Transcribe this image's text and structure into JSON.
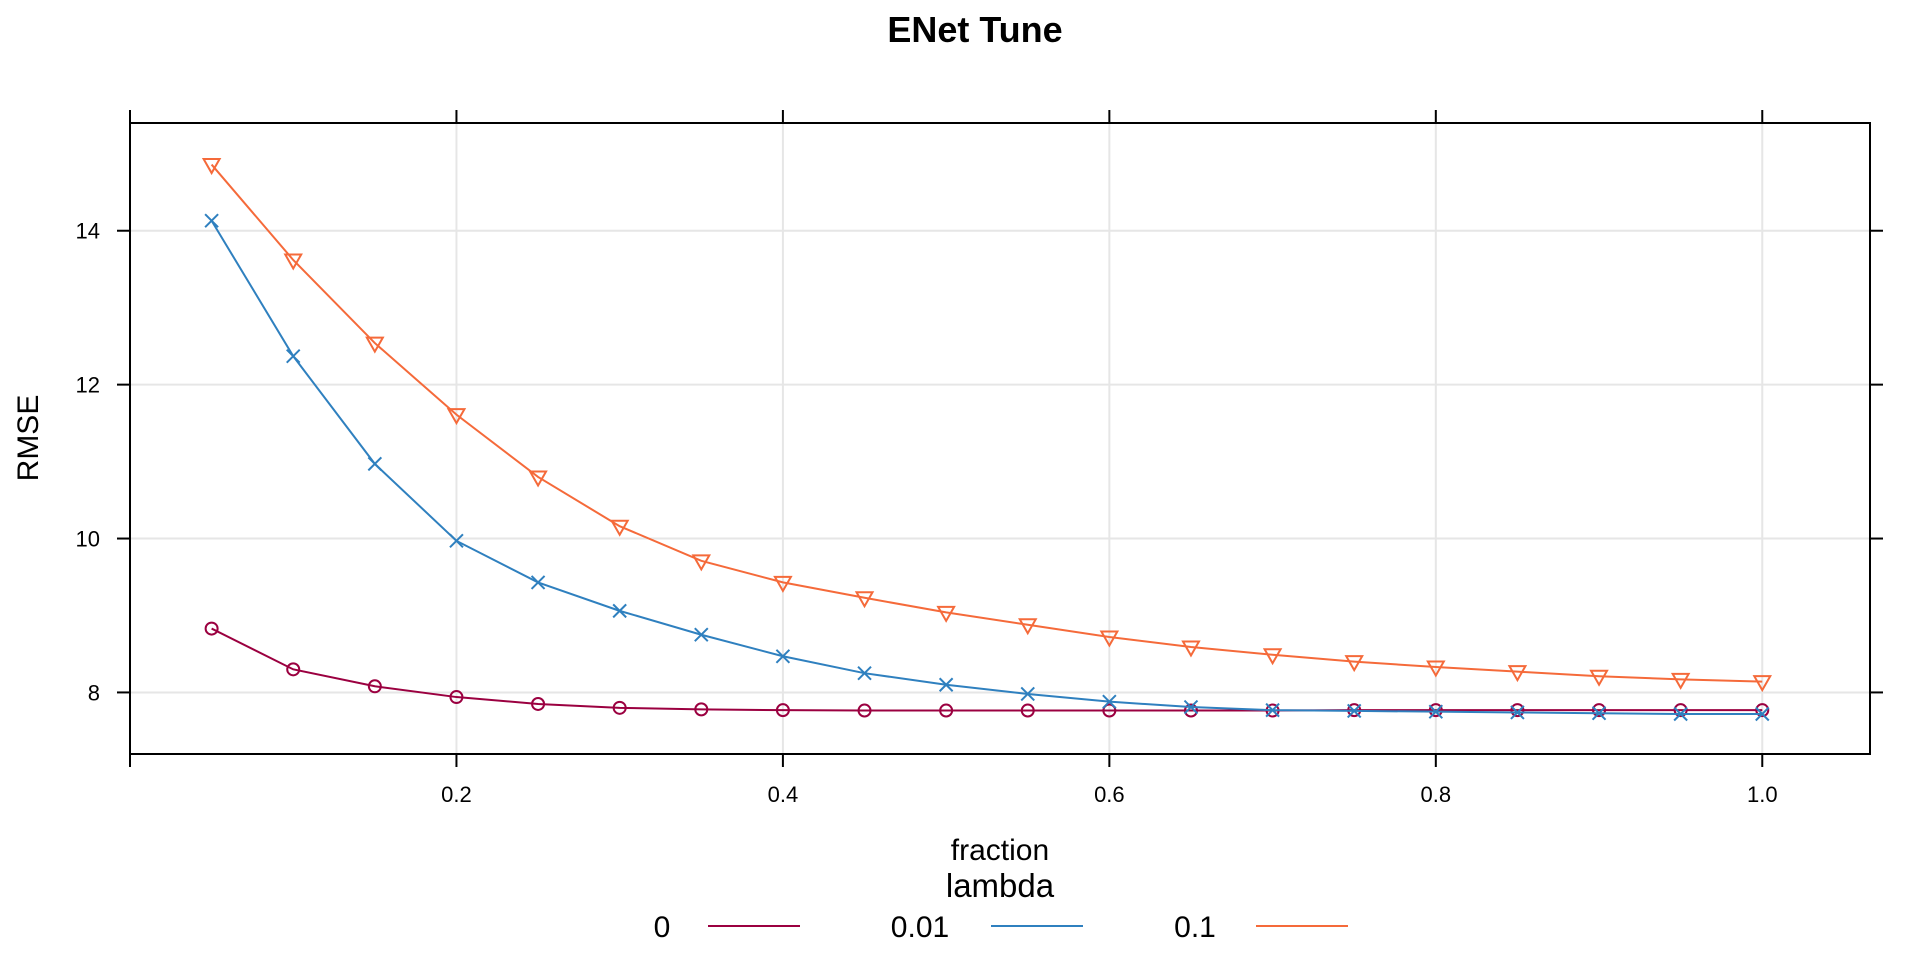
{
  "chart_data": {
    "type": "line",
    "title": "ENet Tune",
    "xlabel": "fraction",
    "ylabel": "RMSE",
    "xlim": [
      -0.0,
      1.066
    ],
    "ylim": [
      7.2,
      15.4
    ],
    "xticks": [
      0.2,
      0.4,
      0.6,
      0.8,
      1.0
    ],
    "xtick_labels": [
      "0.2",
      "0.4",
      "0.6",
      "0.8",
      "1.0"
    ],
    "yticks": [
      8,
      10,
      12,
      14
    ],
    "ytick_labels": [
      "8",
      "10",
      "12",
      "14"
    ],
    "grid": true,
    "legend_title": "lambda",
    "legend_position": "bottom",
    "x": [
      0.05,
      0.1,
      0.15,
      0.2,
      0.25,
      0.3,
      0.35,
      0.4,
      0.45,
      0.5,
      0.55,
      0.6,
      0.65,
      0.7,
      0.75,
      0.8,
      0.85,
      0.9,
      0.95,
      1.0
    ],
    "series": [
      {
        "name": "0",
        "color": "#9b0040",
        "marker": "circle",
        "values": [
          8.83,
          8.3,
          8.08,
          7.94,
          7.85,
          7.8,
          7.78,
          7.77,
          7.765,
          7.765,
          7.765,
          7.765,
          7.765,
          7.765,
          7.77,
          7.77,
          7.77,
          7.77,
          7.77,
          7.77
        ]
      },
      {
        "name": "0.01",
        "color": "#2f80bf",
        "marker": "cross",
        "values": [
          14.13,
          12.37,
          10.97,
          9.97,
          9.43,
          9.06,
          8.75,
          8.47,
          8.25,
          8.1,
          7.98,
          7.88,
          7.81,
          7.77,
          7.76,
          7.75,
          7.74,
          7.73,
          7.72,
          7.72
        ]
      },
      {
        "name": "0.1",
        "color": "#f56a3a",
        "marker": "triangle-down",
        "values": [
          14.86,
          13.62,
          12.54,
          11.61,
          10.8,
          10.16,
          9.71,
          9.43,
          9.23,
          9.04,
          8.88,
          8.72,
          8.59,
          8.49,
          8.4,
          8.33,
          8.27,
          8.21,
          8.17,
          8.14
        ]
      }
    ]
  }
}
